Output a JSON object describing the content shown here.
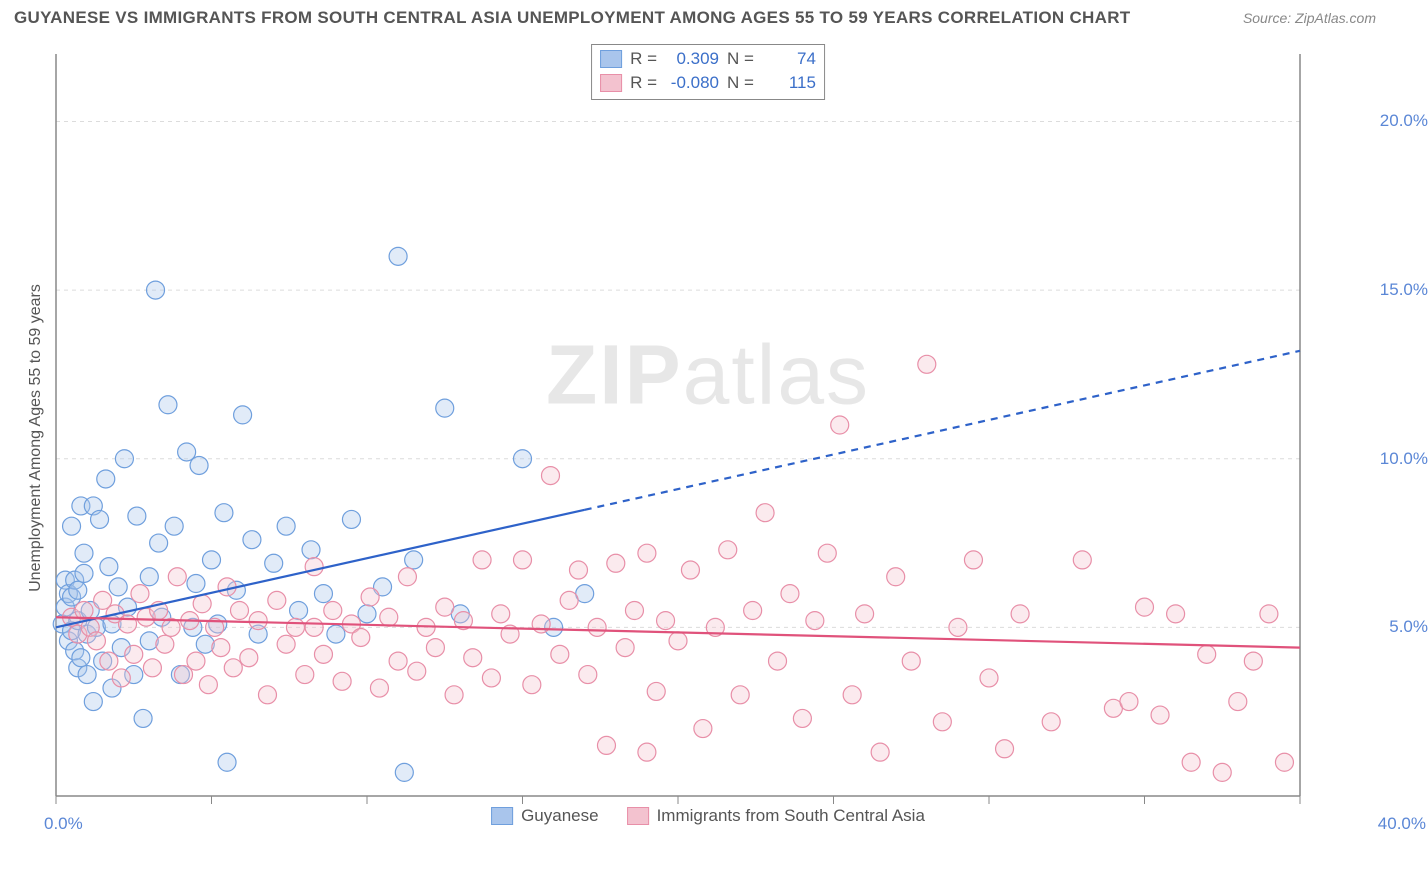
{
  "header": {
    "title": "GUYANESE VS IMMIGRANTS FROM SOUTH CENTRAL ASIA UNEMPLOYMENT AMONG AGES 55 TO 59 YEARS CORRELATION CHART",
    "source": "Source: ZipAtlas.com"
  },
  "watermark": {
    "bold": "ZIP",
    "light": "atlas"
  },
  "chart": {
    "type": "scatter",
    "ylabel": "Unemployment Among Ages 55 to 59 years",
    "xlim": [
      0,
      40
    ],
    "ylim": [
      0,
      22
    ],
    "xticks": [
      0,
      5,
      10,
      15,
      20,
      25,
      30,
      35,
      40
    ],
    "yticks": [
      5,
      10,
      15,
      20
    ],
    "ytick_labels": [
      "5.0%",
      "10.0%",
      "15.0%",
      "20.0%"
    ],
    "origin_label": "0.0%",
    "xmax_label": "40.0%",
    "background_color": "#ffffff",
    "grid_color": "#dcdcdc",
    "grid_dash": "4 4",
    "axis_color": "#888888",
    "marker_radius": 9,
    "marker_stroke_width": 1.2,
    "marker_fill_opacity": 0.35,
    "line_width": 2.2,
    "stats": [
      {
        "r_label": "R =",
        "r_value": "0.309",
        "n_label": "N =",
        "n_value": "74"
      },
      {
        "r_label": "R =",
        "r_value": "-0.080",
        "n_label": "N =",
        "n_value": "115"
      }
    ],
    "series": [
      {
        "name": "Guyanese",
        "color_fill": "#a9c5ec",
        "color_stroke": "#6f9fdd",
        "line_color": "#2e62c9",
        "trend": {
          "x1": 0,
          "y1": 5.0,
          "x2": 40,
          "y2": 13.2,
          "solid_until_x": 17
        },
        "points": [
          [
            0.2,
            5.1
          ],
          [
            0.3,
            5.6
          ],
          [
            0.3,
            6.4
          ],
          [
            0.4,
            4.6
          ],
          [
            0.4,
            6.0
          ],
          [
            0.5,
            4.9
          ],
          [
            0.5,
            5.9
          ],
          [
            0.5,
            8.0
          ],
          [
            0.6,
            6.4
          ],
          [
            0.6,
            4.3
          ],
          [
            0.7,
            5.2
          ],
          [
            0.7,
            6.1
          ],
          [
            0.7,
            3.8
          ],
          [
            0.8,
            8.6
          ],
          [
            0.8,
            4.1
          ],
          [
            0.9,
            6.6
          ],
          [
            0.9,
            7.2
          ],
          [
            1.0,
            4.8
          ],
          [
            1.0,
            3.6
          ],
          [
            1.1,
            5.5
          ],
          [
            1.2,
            8.6
          ],
          [
            1.2,
            2.8
          ],
          [
            1.3,
            5.0
          ],
          [
            1.4,
            8.2
          ],
          [
            1.5,
            4.0
          ],
          [
            1.6,
            9.4
          ],
          [
            1.7,
            6.8
          ],
          [
            1.8,
            5.1
          ],
          [
            1.8,
            3.2
          ],
          [
            2.0,
            6.2
          ],
          [
            2.1,
            4.4
          ],
          [
            2.2,
            10.0
          ],
          [
            2.3,
            5.6
          ],
          [
            2.5,
            3.6
          ],
          [
            2.6,
            8.3
          ],
          [
            2.8,
            2.3
          ],
          [
            3.0,
            6.5
          ],
          [
            3.0,
            4.6
          ],
          [
            3.2,
            15.0
          ],
          [
            3.3,
            7.5
          ],
          [
            3.4,
            5.3
          ],
          [
            3.6,
            11.6
          ],
          [
            3.8,
            8.0
          ],
          [
            4.0,
            3.6
          ],
          [
            4.2,
            10.2
          ],
          [
            4.4,
            5.0
          ],
          [
            4.5,
            6.3
          ],
          [
            4.6,
            9.8
          ],
          [
            4.8,
            4.5
          ],
          [
            5.0,
            7.0
          ],
          [
            5.2,
            5.1
          ],
          [
            5.4,
            8.4
          ],
          [
            5.5,
            1.0
          ],
          [
            5.8,
            6.1
          ],
          [
            6.0,
            11.3
          ],
          [
            6.3,
            7.6
          ],
          [
            6.5,
            4.8
          ],
          [
            7.0,
            6.9
          ],
          [
            7.4,
            8.0
          ],
          [
            7.8,
            5.5
          ],
          [
            8.2,
            7.3
          ],
          [
            8.6,
            6.0
          ],
          [
            9.0,
            4.8
          ],
          [
            9.5,
            8.2
          ],
          [
            10.0,
            5.4
          ],
          [
            10.5,
            6.2
          ],
          [
            11.0,
            16.0
          ],
          [
            11.2,
            0.7
          ],
          [
            11.5,
            7.0
          ],
          [
            12.5,
            11.5
          ],
          [
            13.0,
            5.4
          ],
          [
            15.0,
            10.0
          ],
          [
            16.0,
            5.0
          ],
          [
            17.0,
            6.0
          ]
        ]
      },
      {
        "name": "Immigrants from South Central Asia",
        "color_fill": "#f3c2cf",
        "color_stroke": "#e88fa8",
        "line_color": "#e0527b",
        "trend": {
          "x1": 0,
          "y1": 5.3,
          "x2": 40,
          "y2": 4.4,
          "solid_until_x": 40
        },
        "points": [
          [
            0.5,
            5.3
          ],
          [
            0.7,
            4.8
          ],
          [
            0.9,
            5.5
          ],
          [
            1.1,
            5.0
          ],
          [
            1.3,
            4.6
          ],
          [
            1.5,
            5.8
          ],
          [
            1.7,
            4.0
          ],
          [
            1.9,
            5.4
          ],
          [
            2.1,
            3.5
          ],
          [
            2.3,
            5.1
          ],
          [
            2.5,
            4.2
          ],
          [
            2.7,
            6.0
          ],
          [
            2.9,
            5.3
          ],
          [
            3.1,
            3.8
          ],
          [
            3.3,
            5.5
          ],
          [
            3.5,
            4.5
          ],
          [
            3.7,
            5.0
          ],
          [
            3.9,
            6.5
          ],
          [
            4.1,
            3.6
          ],
          [
            4.3,
            5.2
          ],
          [
            4.5,
            4.0
          ],
          [
            4.7,
            5.7
          ],
          [
            4.9,
            3.3
          ],
          [
            5.1,
            5.0
          ],
          [
            5.3,
            4.4
          ],
          [
            5.5,
            6.2
          ],
          [
            5.7,
            3.8
          ],
          [
            5.9,
            5.5
          ],
          [
            6.2,
            4.1
          ],
          [
            6.5,
            5.2
          ],
          [
            6.8,
            3.0
          ],
          [
            7.1,
            5.8
          ],
          [
            7.4,
            4.5
          ],
          [
            7.7,
            5.0
          ],
          [
            8.0,
            3.6
          ],
          [
            8.3,
            6.8
          ],
          [
            8.3,
            5.0
          ],
          [
            8.6,
            4.2
          ],
          [
            8.9,
            5.5
          ],
          [
            9.2,
            3.4
          ],
          [
            9.5,
            5.1
          ],
          [
            9.8,
            4.7
          ],
          [
            10.1,
            5.9
          ],
          [
            10.4,
            3.2
          ],
          [
            10.7,
            5.3
          ],
          [
            11.0,
            4.0
          ],
          [
            11.3,
            6.5
          ],
          [
            11.6,
            3.7
          ],
          [
            11.9,
            5.0
          ],
          [
            12.2,
            4.4
          ],
          [
            12.5,
            5.6
          ],
          [
            12.8,
            3.0
          ],
          [
            13.1,
            5.2
          ],
          [
            13.4,
            4.1
          ],
          [
            13.7,
            7.0
          ],
          [
            14.0,
            3.5
          ],
          [
            14.3,
            5.4
          ],
          [
            14.6,
            4.8
          ],
          [
            15.0,
            7.0
          ],
          [
            15.3,
            3.3
          ],
          [
            15.6,
            5.1
          ],
          [
            15.9,
            9.5
          ],
          [
            16.2,
            4.2
          ],
          [
            16.5,
            5.8
          ],
          [
            16.8,
            6.7
          ],
          [
            17.1,
            3.6
          ],
          [
            17.4,
            5.0
          ],
          [
            17.7,
            1.5
          ],
          [
            18.0,
            6.9
          ],
          [
            18.3,
            4.4
          ],
          [
            18.6,
            5.5
          ],
          [
            19.0,
            7.2
          ],
          [
            19.0,
            1.3
          ],
          [
            19.3,
            3.1
          ],
          [
            19.6,
            5.2
          ],
          [
            20.0,
            4.6
          ],
          [
            20.4,
            6.7
          ],
          [
            20.8,
            2.0
          ],
          [
            21.2,
            5.0
          ],
          [
            21.6,
            7.3
          ],
          [
            22.0,
            3.0
          ],
          [
            22.4,
            5.5
          ],
          [
            22.8,
            8.4
          ],
          [
            23.2,
            4.0
          ],
          [
            23.6,
            6.0
          ],
          [
            24.0,
            2.3
          ],
          [
            24.4,
            5.2
          ],
          [
            24.8,
            7.2
          ],
          [
            25.2,
            11.0
          ],
          [
            25.6,
            3.0
          ],
          [
            26.0,
            5.4
          ],
          [
            26.5,
            1.3
          ],
          [
            27.0,
            6.5
          ],
          [
            27.5,
            4.0
          ],
          [
            28.0,
            12.8
          ],
          [
            28.5,
            2.2
          ],
          [
            29.0,
            5.0
          ],
          [
            29.5,
            7.0
          ],
          [
            30.0,
            3.5
          ],
          [
            31.0,
            5.4
          ],
          [
            32.0,
            2.2
          ],
          [
            33.0,
            7.0
          ],
          [
            34.0,
            2.6
          ],
          [
            34.5,
            2.8
          ],
          [
            35.0,
            5.6
          ],
          [
            35.5,
            2.4
          ],
          [
            36.0,
            5.4
          ],
          [
            36.5,
            1.0
          ],
          [
            37.0,
            4.2
          ],
          [
            38.0,
            2.8
          ],
          [
            38.5,
            4.0
          ],
          [
            39.0,
            5.4
          ],
          [
            39.5,
            1.0
          ],
          [
            37.5,
            0.7
          ],
          [
            30.5,
            1.4
          ]
        ]
      }
    ]
  }
}
